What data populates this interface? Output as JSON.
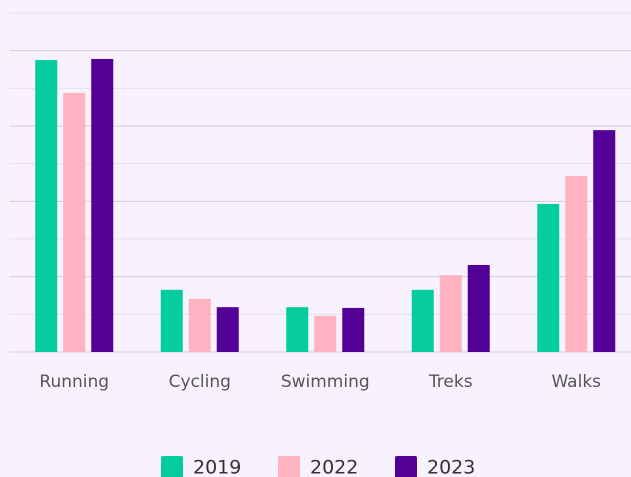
{
  "chart_data": {
    "type": "bar",
    "categories": [
      "Running",
      "Cycling",
      "Swimming",
      "Treks",
      "Walks"
    ],
    "series": [
      {
        "name": "2019",
        "color": "#05cc9f",
        "values": [
          7.75,
          1.65,
          1.19,
          1.65,
          3.93
        ]
      },
      {
        "name": "2022",
        "color": "#ffb3c1",
        "values": [
          6.88,
          1.41,
          0.96,
          2.04,
          4.67
        ]
      },
      {
        "name": "2023",
        "color": "#520096",
        "values": [
          7.78,
          1.19,
          1.17,
          2.31,
          5.89
        ]
      }
    ],
    "ylim": [
      0,
      9
    ],
    "yticks": [
      0,
      1,
      2,
      3,
      4,
      5,
      6,
      7,
      8,
      9
    ],
    "grid": true,
    "legend": "bottom"
  }
}
